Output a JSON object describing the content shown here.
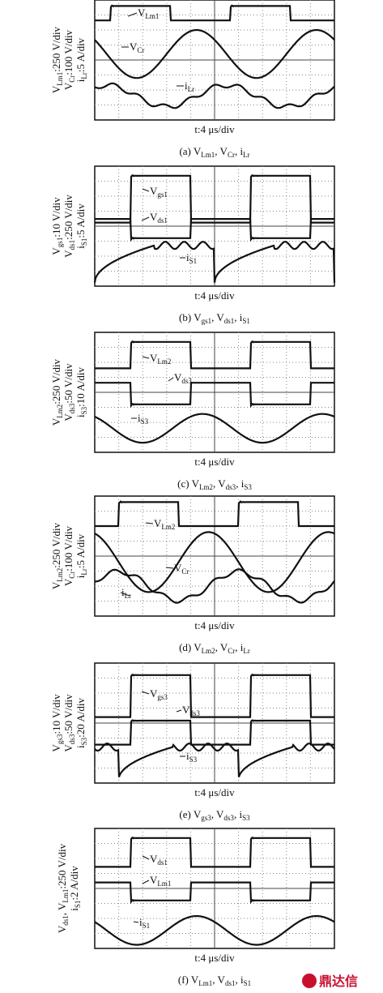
{
  "panels": [
    {
      "ylabel": [
        [
          "V",
          "Lm1",
          ":250 V/div"
        ],
        [
          "V",
          "Cr",
          ":100 V/div"
        ],
        [
          "i",
          "Lr",
          ":5 A/div"
        ]
      ],
      "annotations": [
        [
          "V",
          "Lm1"
        ],
        [
          "V",
          "Cr"
        ],
        [
          "i",
          "Lr"
        ]
      ],
      "xlabel": "t:4 μs/div",
      "caption": [
        "(a) V",
        "Lm1",
        ", V",
        "Cr",
        ", i",
        "Lr"
      ]
    },
    {
      "ylabel": [
        [
          "V",
          "gs1",
          ":10 V/div"
        ],
        [
          "V",
          "ds1",
          ":250 V/div"
        ],
        [
          "i",
          "S1",
          ":5 A/div"
        ]
      ],
      "annotations": [
        [
          "V",
          "gs1"
        ],
        [
          "V",
          "ds1"
        ],
        [
          "i",
          "S1"
        ]
      ],
      "xlabel": "t:4 μs/div",
      "caption": [
        "(b) V",
        "gs1",
        ", V",
        "ds1",
        ", i",
        "S1"
      ]
    },
    {
      "ylabel": [
        [
          "V",
          "Lm2",
          ":250 V/div"
        ],
        [
          "V",
          "ds3",
          ":50 V/div"
        ],
        [
          "i",
          "S3",
          ":10 A/div"
        ]
      ],
      "annotations": [
        [
          "V",
          "Lm2"
        ],
        [
          "V",
          "ds3"
        ],
        [
          "i",
          "S3"
        ]
      ],
      "xlabel": "t:4 μs/div",
      "caption": [
        "(c) V",
        "Lm2",
        ", V",
        "ds3",
        ", i",
        "S3"
      ]
    },
    {
      "ylabel": [
        [
          "V",
          "Lm2",
          ":250 V/div"
        ],
        [
          "V",
          "Cr",
          ":100 V/div"
        ],
        [
          "i",
          "Lr",
          ":5 A/div"
        ]
      ],
      "annotations": [
        [
          "V",
          "Lm2"
        ],
        [
          "V",
          "Cr"
        ],
        [
          "i",
          "Lr"
        ]
      ],
      "xlabel": "t:4 μs/div",
      "caption": [
        "(d) V",
        "Lm2",
        ", V",
        "Cr",
        ", i",
        "Lr"
      ]
    },
    {
      "ylabel": [
        [
          "V",
          "gs3",
          ":10 V/div"
        ],
        [
          "V",
          "ds3",
          ":50 V/div"
        ],
        [
          "i",
          "S3",
          ":20 A/div"
        ]
      ],
      "annotations": [
        [
          "V",
          "gs3"
        ],
        [
          "V",
          "ds3"
        ],
        [
          "i",
          "S3"
        ]
      ],
      "xlabel": "t:4 μs/div",
      "caption": [
        "(e) V",
        "gs3",
        ", V",
        "ds3",
        ", i",
        "S3"
      ]
    },
    {
      "ylabel": [
        [
          "V",
          "ds1",
          ", V",
          "Lm1",
          ":250 V/div"
        ],
        [
          "i",
          "S1",
          ":2 A/div"
        ]
      ],
      "annotations": [
        [
          "V",
          "ds1"
        ],
        [
          "V",
          "Lm1"
        ],
        [
          "i",
          "S1"
        ]
      ],
      "xlabel": "t:4 μs/div",
      "caption": [
        "(f) V",
        "Lm1",
        ", V",
        "ds1",
        ", i",
        "S1"
      ]
    }
  ],
  "logo": "鼎达信"
}
